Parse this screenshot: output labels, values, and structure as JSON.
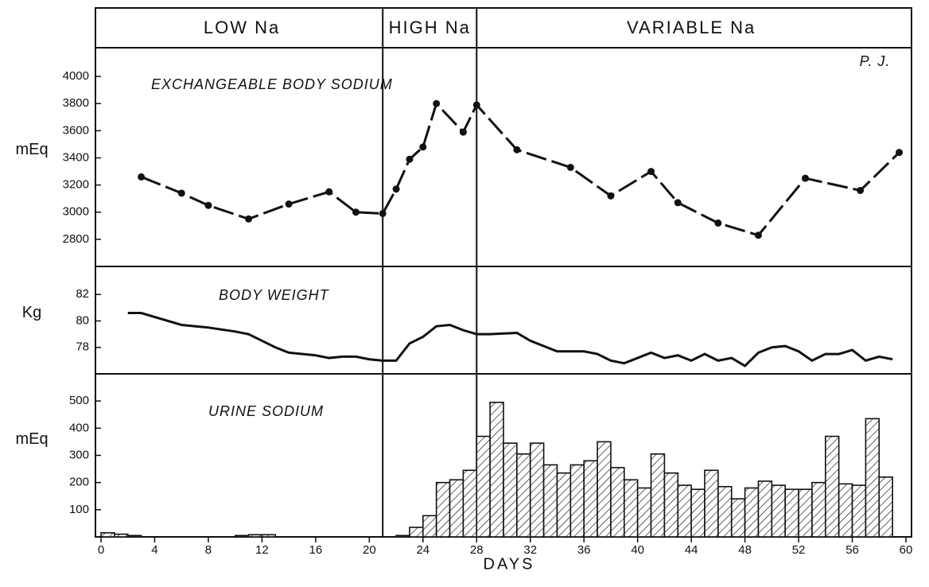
{
  "phases": [
    {
      "label": "LOW Na",
      "start": 0,
      "end": 21
    },
    {
      "label": "HIGH Na",
      "start": 21,
      "end": 28
    },
    {
      "label": "VARIABLE Na",
      "start": 28,
      "end": 60
    }
  ],
  "annotation": "P. J.",
  "chart_data": [
    {
      "type": "line",
      "title": "EXCHANGEABLE BODY SODIUM",
      "ylabel": "mEq",
      "markers": true,
      "color": "#111",
      "x": [
        3,
        6,
        8,
        11,
        14,
        17,
        19,
        21,
        22,
        23,
        24,
        25,
        27,
        28,
        31,
        35,
        38,
        41,
        43,
        46,
        49,
        52.5,
        56.6,
        59.5
      ],
      "values": [
        3260,
        3140,
        3050,
        2950,
        3060,
        3150,
        3000,
        2990,
        3170,
        3390,
        3480,
        3800,
        3590,
        3790,
        3460,
        3330,
        3120,
        3300,
        3070,
        2920,
        2830,
        3250,
        3160,
        3440
      ],
      "ylim": [
        2600,
        4200
      ],
      "yticks": [
        2800,
        3000,
        3200,
        3400,
        3600,
        3800,
        4000
      ]
    },
    {
      "type": "line",
      "title": "BODY WEIGHT",
      "ylabel": "Kg",
      "markers": false,
      "color": "#111",
      "x": [
        2,
        3,
        4,
        6,
        8,
        10,
        11,
        12,
        13,
        14,
        16,
        17,
        18,
        19,
        20,
        21,
        22,
        23,
        24,
        25,
        26,
        27,
        28,
        29,
        31,
        32,
        34,
        36,
        37,
        38,
        39,
        40,
        41,
        42,
        43,
        44,
        45,
        46,
        47,
        48,
        49,
        50,
        51,
        52,
        53,
        54,
        55,
        56,
        57,
        58,
        59
      ],
      "values": [
        80.6,
        80.6,
        80.3,
        79.7,
        79.5,
        79.2,
        79.0,
        78.5,
        78.0,
        77.6,
        77.4,
        77.2,
        77.3,
        77.3,
        77.1,
        77.0,
        77.0,
        78.3,
        78.8,
        79.6,
        79.7,
        79.3,
        79.0,
        79.0,
        79.1,
        78.5,
        77.7,
        77.7,
        77.5,
        77.0,
        76.8,
        77.2,
        77.6,
        77.2,
        77.4,
        77.0,
        77.5,
        77.0,
        77.2,
        76.6,
        77.6,
        78.0,
        78.1,
        77.7,
        77.0,
        77.5,
        77.5,
        77.8,
        77.0,
        77.3,
        77.1
      ],
      "ylim": [
        76,
        84
      ],
      "yticks": [
        78,
        80,
        82
      ]
    },
    {
      "type": "histogram",
      "title": "URINE SODIUM",
      "ylabel": "mEq",
      "xlabel": "DAYS",
      "color": "#111",
      "bins": [
        0,
        1,
        2,
        3,
        4,
        5,
        6,
        7,
        8,
        9,
        10,
        11,
        12,
        13,
        14,
        15,
        16,
        17,
        18,
        19,
        20,
        21,
        22,
        23,
        24,
        25,
        26,
        27,
        28,
        29,
        30,
        31,
        32,
        33,
        34,
        35,
        36,
        37,
        38,
        39,
        40,
        41,
        42,
        43,
        44,
        45,
        46,
        47,
        48,
        49,
        50,
        51,
        52,
        53,
        54,
        55,
        56,
        57,
        58,
        59
      ],
      "values": [
        15,
        10,
        5,
        0,
        0,
        0,
        0,
        0,
        0,
        0,
        5,
        8,
        8,
        0,
        0,
        0,
        0,
        0,
        0,
        0,
        0,
        0,
        5,
        35,
        78,
        200,
        210,
        245,
        370,
        495,
        345,
        305,
        345,
        265,
        235,
        265,
        280,
        350,
        255,
        210,
        180,
        305,
        235,
        190,
        175,
        245,
        185,
        140,
        180,
        205,
        190,
        175,
        175,
        200,
        370,
        195,
        190,
        435,
        220
      ],
      "ylim": [
        0,
        600
      ],
      "yticks": [
        100,
        200,
        300,
        400,
        500
      ],
      "xlim": [
        0,
        60
      ],
      "xticks": [
        0,
        4,
        8,
        12,
        16,
        20,
        24,
        28,
        32,
        36,
        40,
        44,
        48,
        52,
        56,
        60
      ]
    }
  ]
}
